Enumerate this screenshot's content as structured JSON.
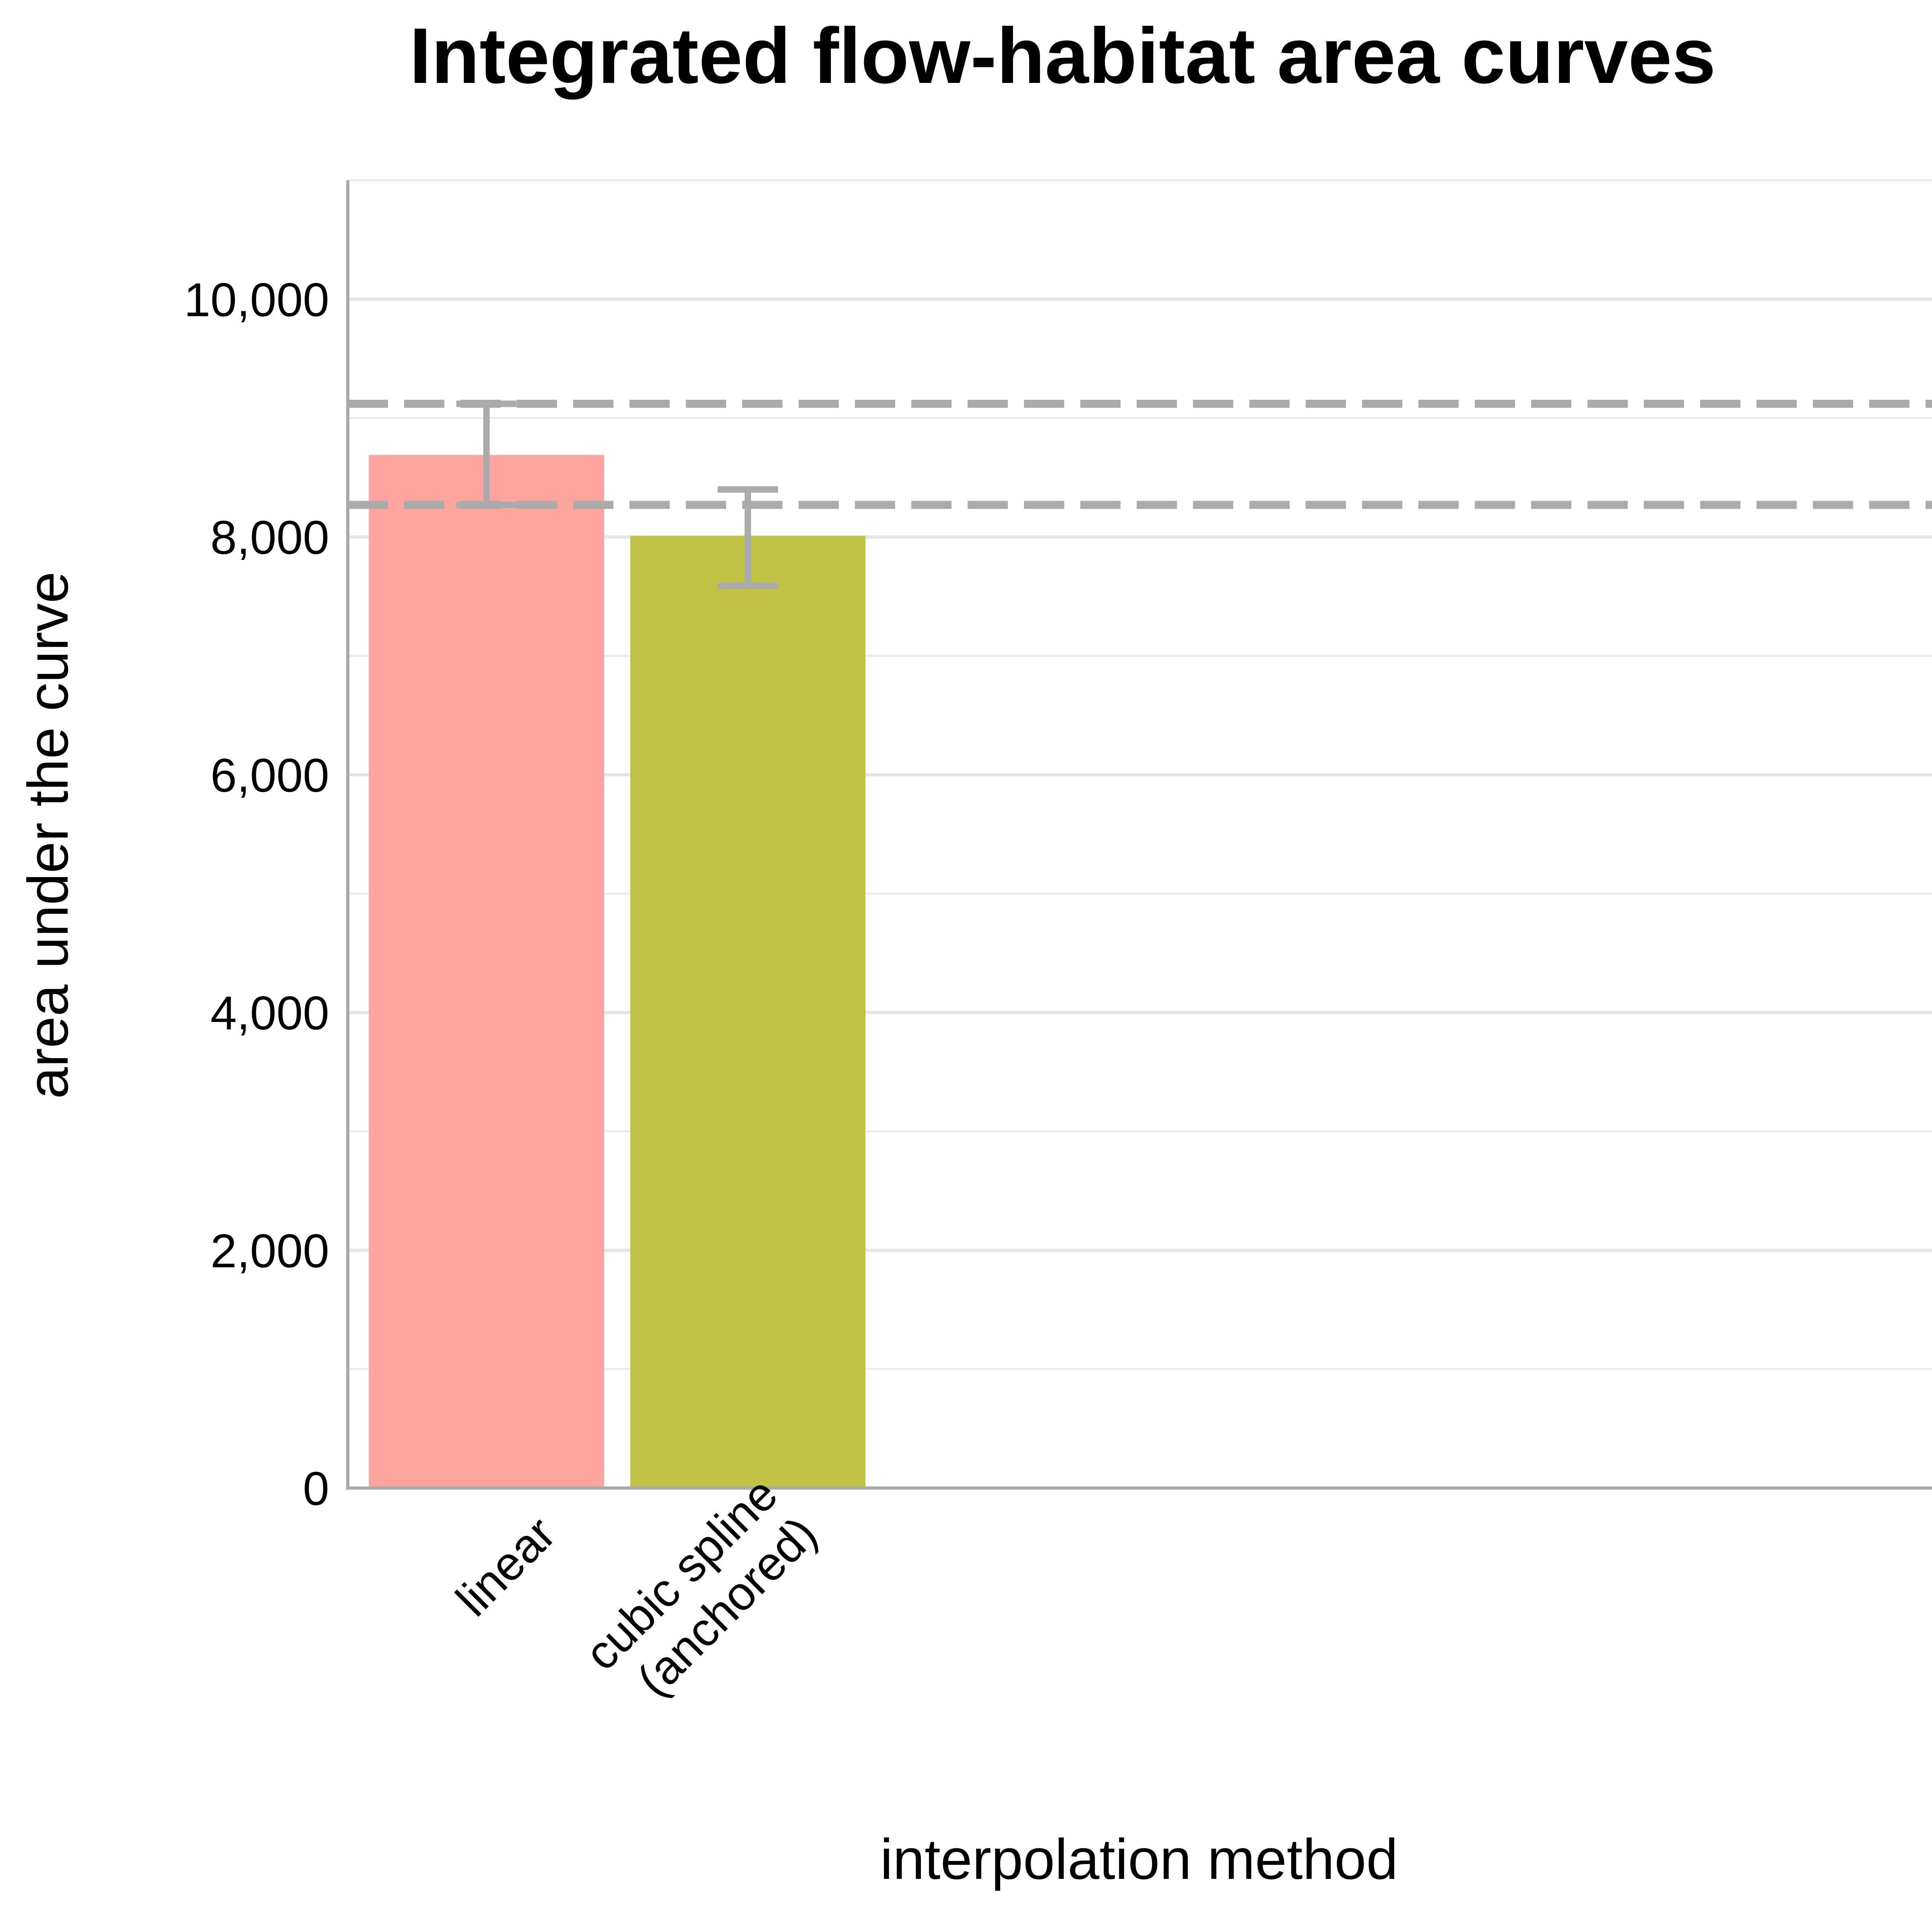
{
  "chart_data": {
    "type": "bar",
    "title": "Integrated flow-habitat area curves",
    "xlabel": "interpolation method",
    "ylabel": "area under the curve",
    "categories": [
      "linear",
      "cubic spline\n(anchored)"
    ],
    "values": [
      8690,
      8010
    ],
    "error_low": [
      8270,
      7590
    ],
    "error_high": [
      9120,
      8400
    ],
    "colors": [
      "#ffa39e",
      "#bfc244"
    ],
    "reference_lines": [
      9120,
      8270
    ],
    "reference_line_color": "#aaaaaa",
    "ylim": [
      0,
      11000
    ],
    "yticks": [
      0,
      2000,
      4000,
      6000,
      8000,
      10000
    ],
    "ytick_labels": [
      "0",
      "2,000",
      "4,000",
      "6,000",
      "8,000",
      "10,000"
    ],
    "minor_grid": [
      1000,
      3000,
      5000,
      7000,
      9000,
      11000
    ],
    "grid": true,
    "legend": "none"
  }
}
